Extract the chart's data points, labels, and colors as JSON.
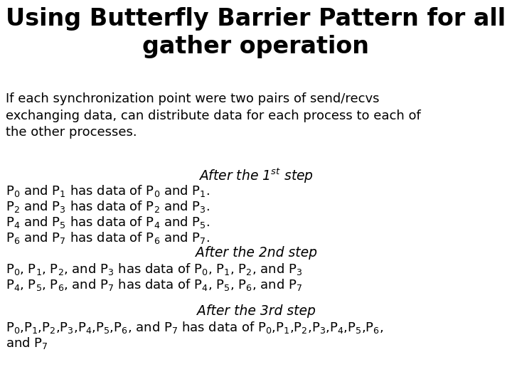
{
  "title": "Using Butterfly Barrier Pattern for all\ngather operation",
  "title_fontsize": 24,
  "title_fontweight": "bold",
  "body_fontsize": 13,
  "italic_fontsize": 13.5,
  "background_color": "#ffffff",
  "text_color": "#000000",
  "intro_text": "If each synchronization point were two pairs of send/recvs\nexchanging data, can distribute data for each process to each of\nthe other processes.",
  "subtitle1": "After the 1$^{st}$ step",
  "step1_lines": [
    "P$_0$ and P$_1$ has data of P$_0$ and P$_1$.",
    "P$_2$ and P$_3$ has data of P$_2$ and P$_3$.",
    "P$_4$ and P$_5$ has data of P$_4$ and P$_5$.",
    "P$_6$ and P$_7$ has data of P$_6$ and P$_7$."
  ],
  "subtitle2": "After the 2nd step",
  "step2_lines": [
    "P$_0$, P$_1$, P$_2$, and P$_3$ has data of P$_0$, P$_1$, P$_2$, and P$_3$",
    "P$_4$, P$_5$, P$_6$, and P$_7$ has data of P$_4$, P$_5$, P$_6$, and P$_7$"
  ],
  "subtitle3": "After the 3rd step",
  "step3_line1": "P$_0$,P$_1$,P$_2$,P$_3$,P$_4$,P$_5$,P$_6$, and P$_7$ has data of P$_0$,P$_1$,P$_2$,P$_3$,P$_4$,P$_5$,P$_6$,",
  "step3_line2": "and P$_7$"
}
